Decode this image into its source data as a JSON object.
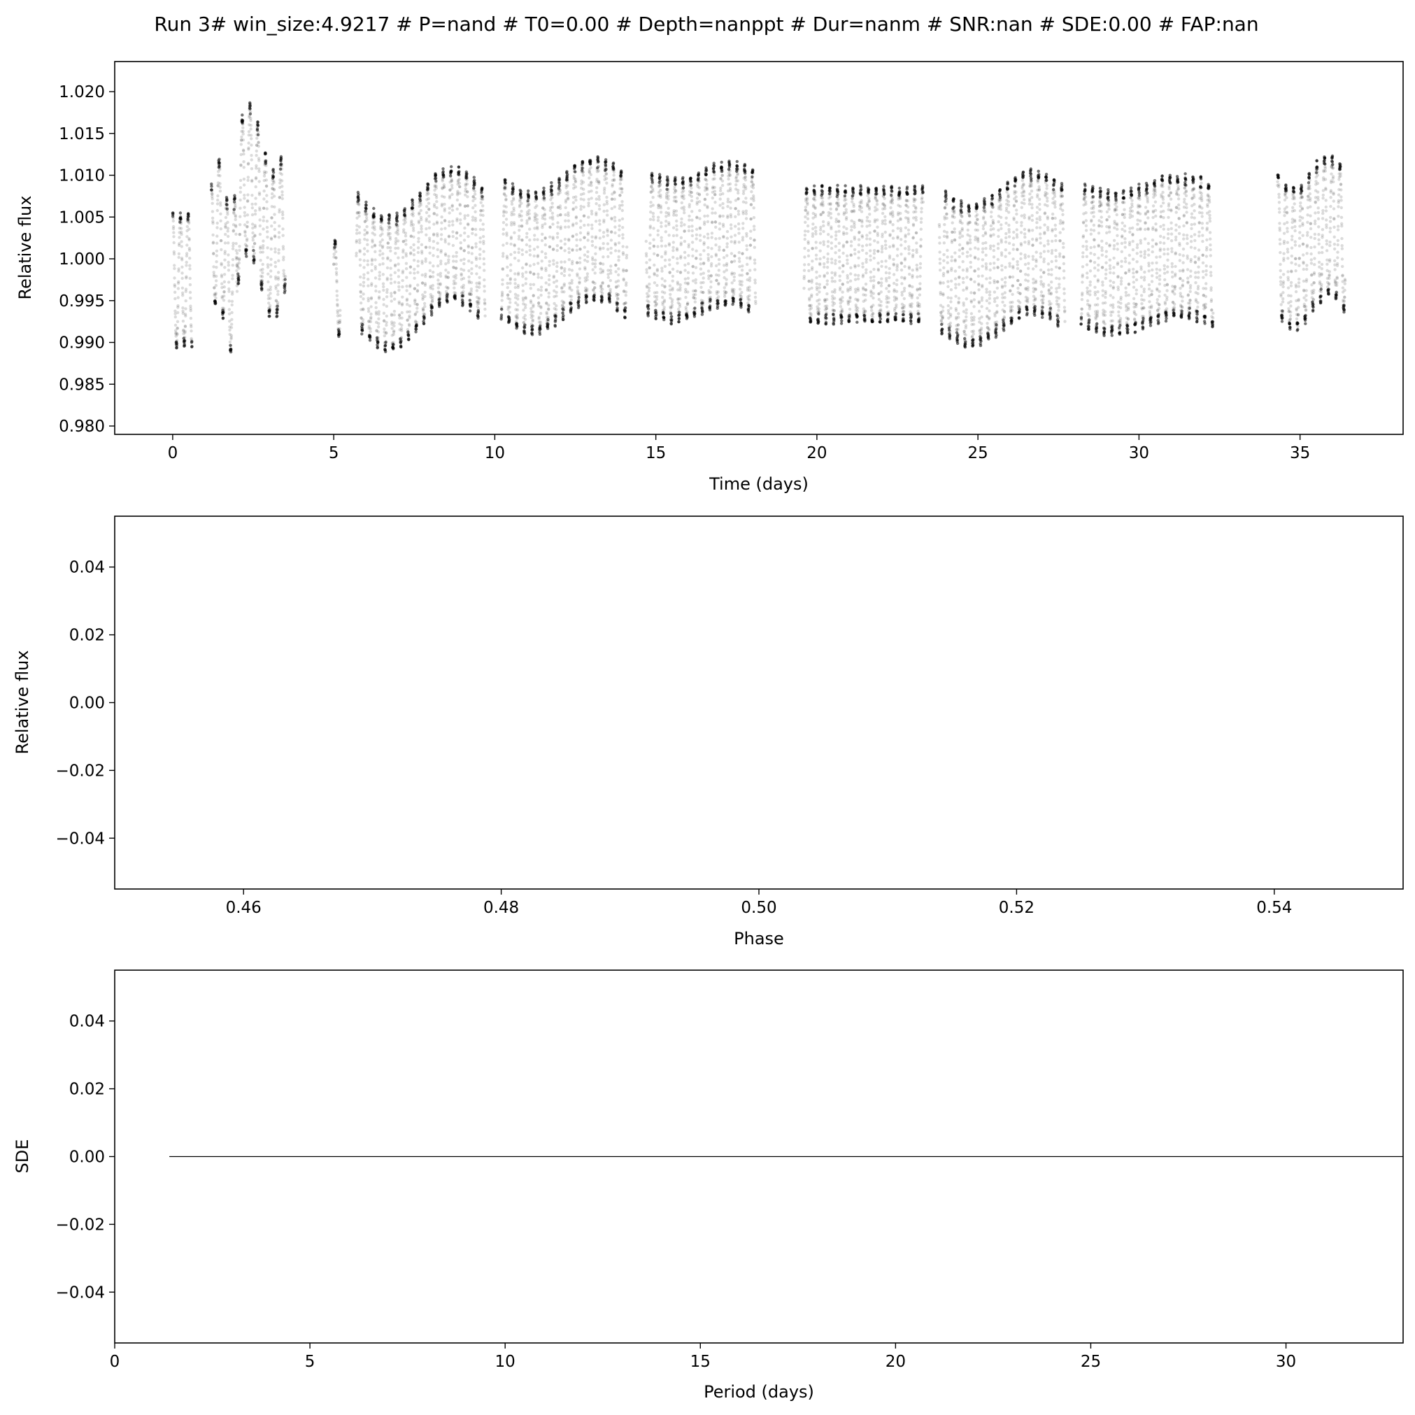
{
  "title": "Run 3# win_size:4.9217 # P=nand # T0=0.00 # Depth=nanppt # Dur=nanm # SNR:nan # SDE:0.00 # FAP:nan",
  "chart_data": [
    {
      "type": "scatter",
      "name": "light-curve",
      "xlabel": "Time (days)",
      "ylabel": "Relative flux",
      "xlim": [
        -1.8,
        38.2
      ],
      "ylim": [
        0.979,
        1.0236
      ],
      "xticks": [
        0,
        5,
        10,
        15,
        20,
        25,
        30,
        35
      ],
      "xtick_labels": [
        "0",
        "5",
        "10",
        "15",
        "20",
        "25",
        "30",
        "35"
      ],
      "yticks": [
        0.98,
        0.985,
        0.99,
        0.995,
        1.0,
        1.005,
        1.01,
        1.015,
        1.02
      ],
      "ytick_labels": [
        "0.980",
        "0.985",
        "0.990",
        "0.995",
        "1.000",
        "1.005",
        "1.010",
        "1.015",
        "1.020"
      ],
      "grid": false,
      "point_color": "#000000",
      "segments": [
        {
          "t0": 0.0,
          "t1": 0.6,
          "mean": 0.9975,
          "trend": 0.0,
          "amp": 0.0085
        },
        {
          "t0": 1.2,
          "t1": 2.0,
          "mean": 1.0005,
          "trend": 0.003,
          "amp": 0.009
        },
        {
          "t0": 2.0,
          "t1": 3.5,
          "mean": 1.0055,
          "trend": 0.004,
          "amp": 0.0095
        },
        {
          "t0": 5.0,
          "t1": 5.2,
          "mean": 0.9965,
          "trend": 0.0,
          "amp": 0.006
        },
        {
          "t0": 5.7,
          "t1": 9.7,
          "mean": 1.0,
          "trend": -0.003,
          "amp": 0.0085
        },
        {
          "t0": 10.2,
          "t1": 14.1,
          "mean": 1.0015,
          "trend": -0.002,
          "amp": 0.009
        },
        {
          "t0": 14.7,
          "t1": 18.1,
          "mean": 1.002,
          "trend": -0.001,
          "amp": 0.009
        },
        {
          "t0": 19.6,
          "t1": 23.3,
          "mean": 1.0005,
          "trend": 0.0,
          "amp": 0.0085
        },
        {
          "t0": 23.8,
          "t1": 27.7,
          "mean": 1.0,
          "trend": -0.002,
          "amp": 0.009
        },
        {
          "t0": 28.2,
          "t1": 32.3,
          "mean": 1.0005,
          "trend": -0.001,
          "amp": 0.009
        },
        {
          "t0": 34.3,
          "t1": 36.4,
          "mean": 1.002,
          "trend": -0.002,
          "amp": 0.009
        }
      ]
    },
    {
      "type": "scatter",
      "name": "phase-folded",
      "xlabel": "Phase",
      "ylabel": "Relative flux",
      "xlim": [
        0.45,
        0.55
      ],
      "ylim": [
        -0.055,
        0.055
      ],
      "xticks": [
        0.46,
        0.48,
        0.5,
        0.52,
        0.54
      ],
      "xtick_labels": [
        "0.46",
        "0.48",
        "0.50",
        "0.52",
        "0.54"
      ],
      "yticks": [
        -0.04,
        -0.02,
        0.0,
        0.02,
        0.04
      ],
      "ytick_labels": [
        "−0.04",
        "−0.02",
        "0.00",
        "0.02",
        "0.04"
      ],
      "grid": false,
      "points": []
    },
    {
      "type": "line",
      "name": "periodogram",
      "xlabel": "Period (days)",
      "ylabel": "SDE",
      "xlim": [
        0,
        33
      ],
      "ylim": [
        -0.055,
        0.055
      ],
      "xticks": [
        0,
        5,
        10,
        15,
        20,
        25,
        30
      ],
      "xtick_labels": [
        "0",
        "5",
        "10",
        "15",
        "20",
        "25",
        "30"
      ],
      "yticks": [
        -0.04,
        -0.02,
        0.0,
        0.02,
        0.04
      ],
      "ytick_labels": [
        "−0.04",
        "−0.02",
        "0.00",
        "0.02",
        "0.04"
      ],
      "grid": false,
      "line_color": "#000000",
      "series": [
        {
          "x": [
            1.4,
            33.0
          ],
          "y": [
            0.0,
            0.0
          ]
        }
      ]
    }
  ]
}
